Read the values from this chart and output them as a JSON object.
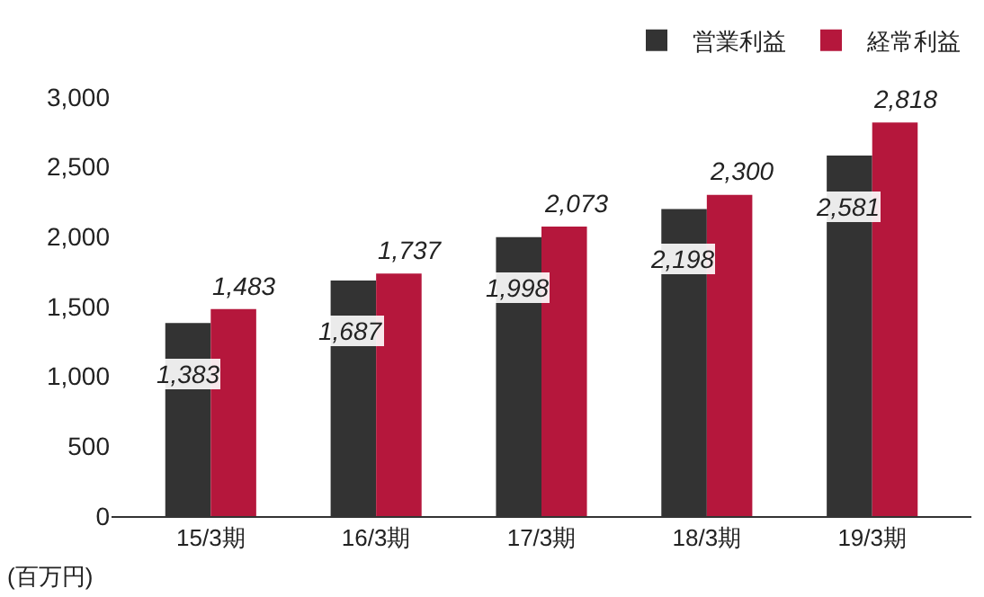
{
  "chart_data": {
    "type": "bar",
    "ylabel": "(百万円)",
    "categories": [
      "15/3期",
      "16/3期",
      "17/3期",
      "18/3期",
      "19/3期"
    ],
    "series": [
      {
        "name": "営業利益",
        "color": "#333333",
        "values": [
          1383,
          1687,
          1998,
          2198,
          2581
        ],
        "value_labels": [
          "1,383",
          "1,687",
          "1,998",
          "2,198",
          "2,581"
        ]
      },
      {
        "name": "経常利益",
        "color": "#b5173c",
        "values": [
          1483,
          1737,
          2073,
          2300,
          2818
        ],
        "value_labels": [
          "1,483",
          "1,737",
          "2,073",
          "2,300",
          "2,818"
        ]
      }
    ],
    "ylim": [
      0,
      3000
    ],
    "yticks": [
      {
        "value": 0,
        "label": "0"
      },
      {
        "value": 500,
        "label": "500"
      },
      {
        "value": 1000,
        "label": "1,000"
      },
      {
        "value": 1500,
        "label": "1,500"
      },
      {
        "value": 2000,
        "label": "2,000"
      },
      {
        "value": 2500,
        "label": "2,500"
      },
      {
        "value": 3000,
        "label": "3,000"
      }
    ],
    "legend": "top right"
  }
}
